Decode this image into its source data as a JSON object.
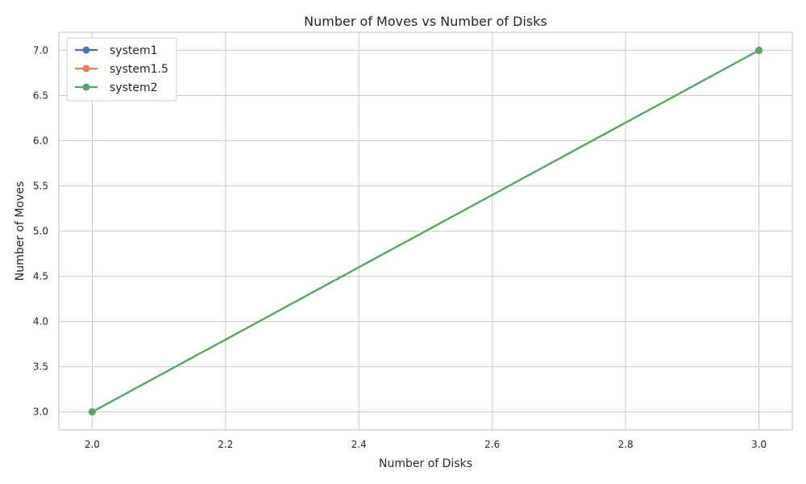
{
  "chart_data": {
    "type": "line",
    "title": "Number of Moves vs Number of Disks",
    "xlabel": "Number of Disks",
    "ylabel": "Number of Moves",
    "xlim": [
      1.95,
      3.05
    ],
    "ylim": [
      2.8,
      7.2
    ],
    "x_ticks": [
      "2.0",
      "2.2",
      "2.4",
      "2.6",
      "2.8",
      "3.0"
    ],
    "y_ticks": [
      "3.0",
      "3.5",
      "4.0",
      "4.5",
      "5.0",
      "5.5",
      "6.0",
      "6.5",
      "7.0"
    ],
    "grid": true,
    "legend_position": "top-left",
    "x": [
      2,
      3
    ],
    "series": [
      {
        "name": "system1",
        "values": [
          3,
          7
        ],
        "color": "#4c72b0"
      },
      {
        "name": "system1.5",
        "values": [
          3,
          7
        ],
        "color": "#dd8452"
      },
      {
        "name": "system2",
        "values": [
          3,
          7
        ],
        "color": "#55a868"
      }
    ]
  }
}
